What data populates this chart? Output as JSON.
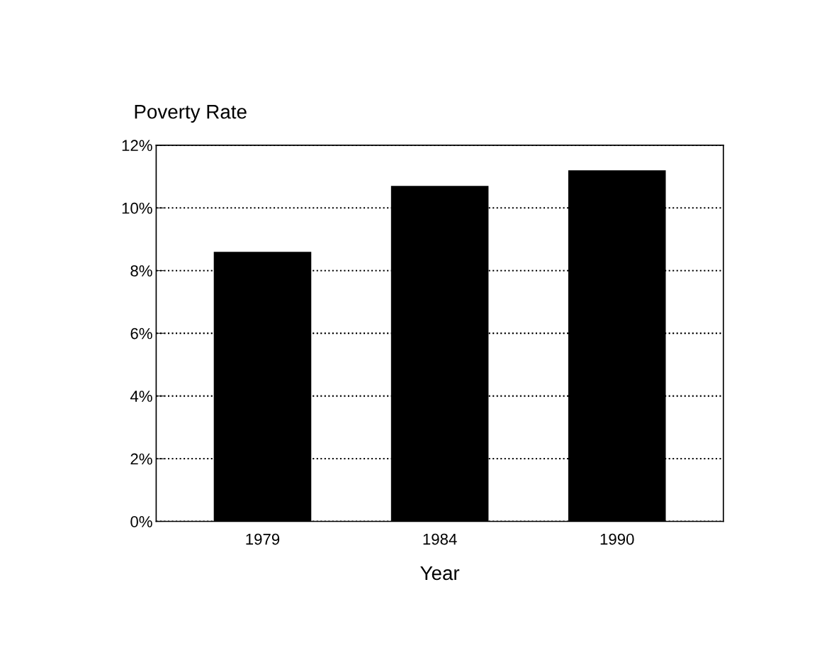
{
  "chart_data": {
    "type": "bar",
    "ylabel": "Poverty Rate",
    "xlabel": "Year",
    "categories": [
      "1979",
      "1984",
      "1990"
    ],
    "values": [
      8.6,
      10.7,
      11.2
    ],
    "color": "#000000",
    "ylim": [
      0,
      12
    ],
    "yticks": [
      {
        "value": 0,
        "label": "0%"
      },
      {
        "value": 2,
        "label": "2%"
      },
      {
        "value": 4,
        "label": "4%"
      },
      {
        "value": 6,
        "label": "6%"
      },
      {
        "value": 8,
        "label": "8%"
      },
      {
        "value": 10,
        "label": "10%"
      },
      {
        "value": 12,
        "label": "12%"
      }
    ],
    "grid": "y",
    "line_style": "dotted"
  }
}
